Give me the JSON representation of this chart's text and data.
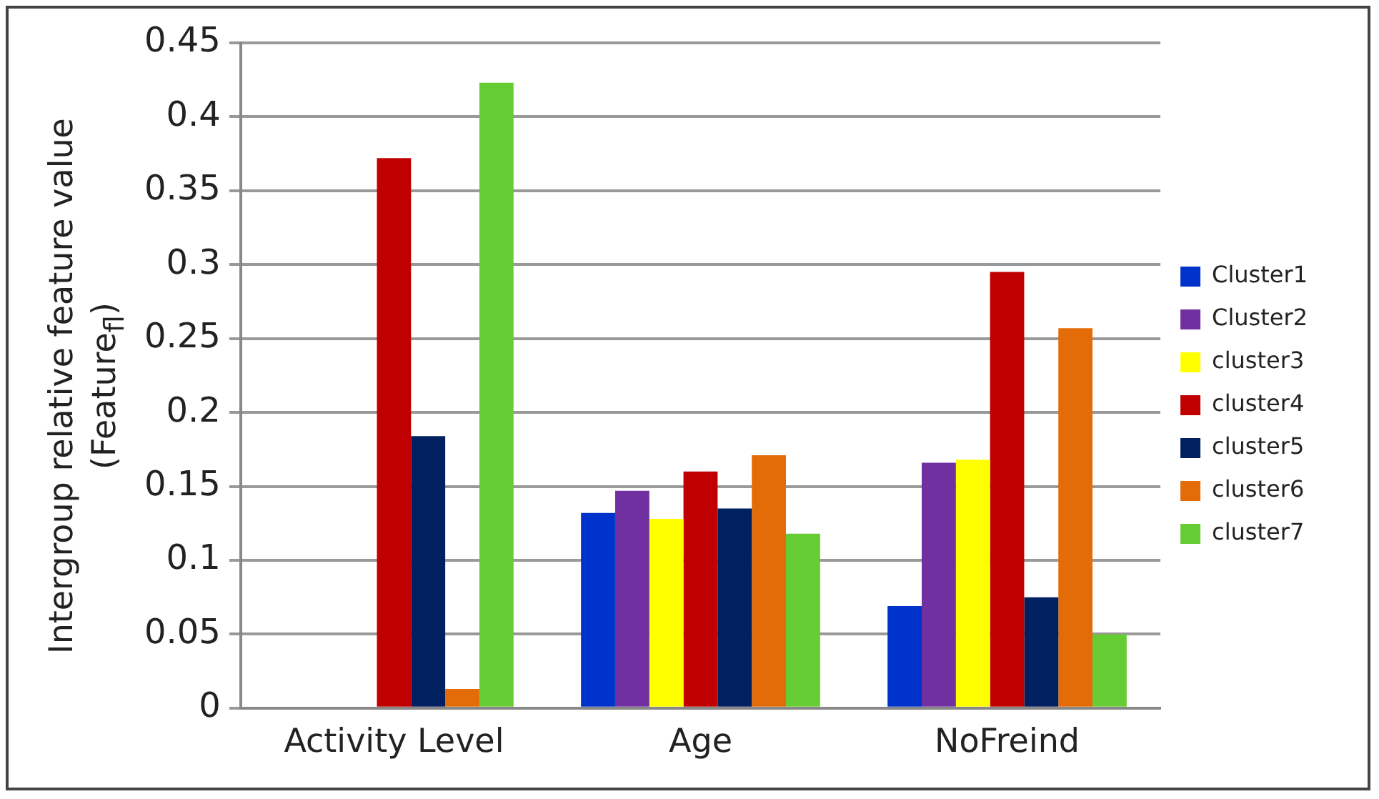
{
  "chart_data": {
    "type": "bar",
    "ylabel": "Intergroup relative feature value\n(Feature$_{fl}$)",
    "categories": [
      "Activity Level",
      "Age",
      "NoFreind"
    ],
    "series": [
      {
        "name": "Cluster1",
        "color": "#0033cc",
        "values": [
          0,
          0.132,
          0.069
        ]
      },
      {
        "name": "Cluster2",
        "color": "#7030a0",
        "values": [
          0,
          0.147,
          0.166
        ]
      },
      {
        "name": "cluster3",
        "color": "#ffff00",
        "values": [
          0,
          0.128,
          0.168
        ]
      },
      {
        "name": "cluster4",
        "color": "#c00000",
        "values": [
          0.372,
          0.16,
          0.295
        ]
      },
      {
        "name": "cluster5",
        "color": "#002060",
        "values": [
          0.184,
          0.135,
          0.075
        ]
      },
      {
        "name": "cluster6",
        "color": "#e36c09",
        "values": [
          0.013,
          0.171,
          0.257
        ]
      },
      {
        "name": "cluster7",
        "color": "#66cc33",
        "values": [
          0.423,
          0.118,
          0.05
        ]
      }
    ],
    "ylim": [
      0,
      0.45
    ],
    "yticks": [
      0,
      0.05,
      0.1,
      0.15,
      0.2,
      0.25,
      0.3,
      0.35,
      0.4,
      0.45
    ],
    "grid": "y",
    "legend": "right"
  }
}
